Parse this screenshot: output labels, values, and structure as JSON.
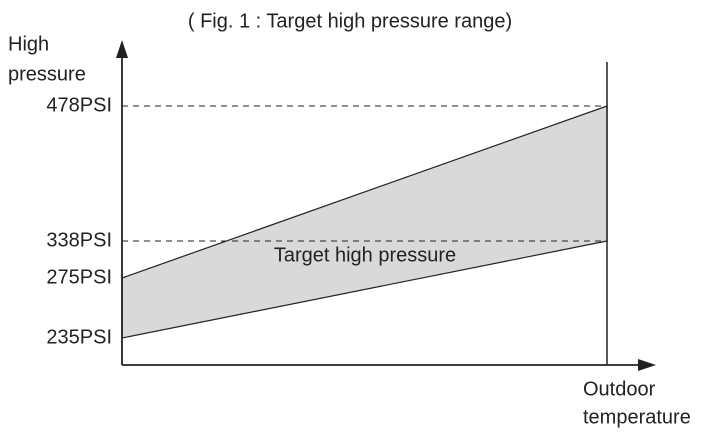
{
  "title": "( Fig. 1 : Target high pressure range)",
  "y_axis": {
    "label_lines": [
      "High",
      "pressure"
    ],
    "ticks": [
      "478PSI",
      "338PSI",
      "275PSI",
      "235PSI"
    ]
  },
  "x_axis": {
    "label_lines": [
      "Outdoor",
      "temperature"
    ]
  },
  "band_label": "Target high pressure"
}
